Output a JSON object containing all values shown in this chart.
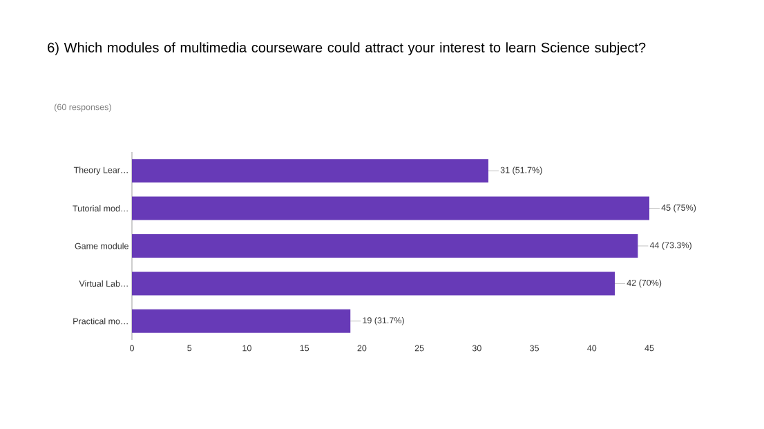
{
  "chart_data": {
    "type": "bar",
    "orientation": "horizontal",
    "title": "6) Which modules of multimedia courseware could attract your interest to learn Science subject?",
    "subtitle": "(60 responses)",
    "categories": [
      "Theory Lear…",
      "Tutorial mod…",
      "Game module",
      "Virtual Lab…",
      "Practical mo…"
    ],
    "values": [
      31,
      45,
      44,
      42,
      19
    ],
    "value_labels": [
      "31 (51.7%)",
      "45 (75%)",
      "44 (73.3%)",
      "42 (70%)",
      "19 (31.7%)"
    ],
    "color": "#673ab7",
    "xlim": [
      0,
      45
    ],
    "xticks": [
      0,
      5,
      10,
      15,
      20,
      25,
      30,
      35,
      40,
      45
    ],
    "grid": false
  }
}
